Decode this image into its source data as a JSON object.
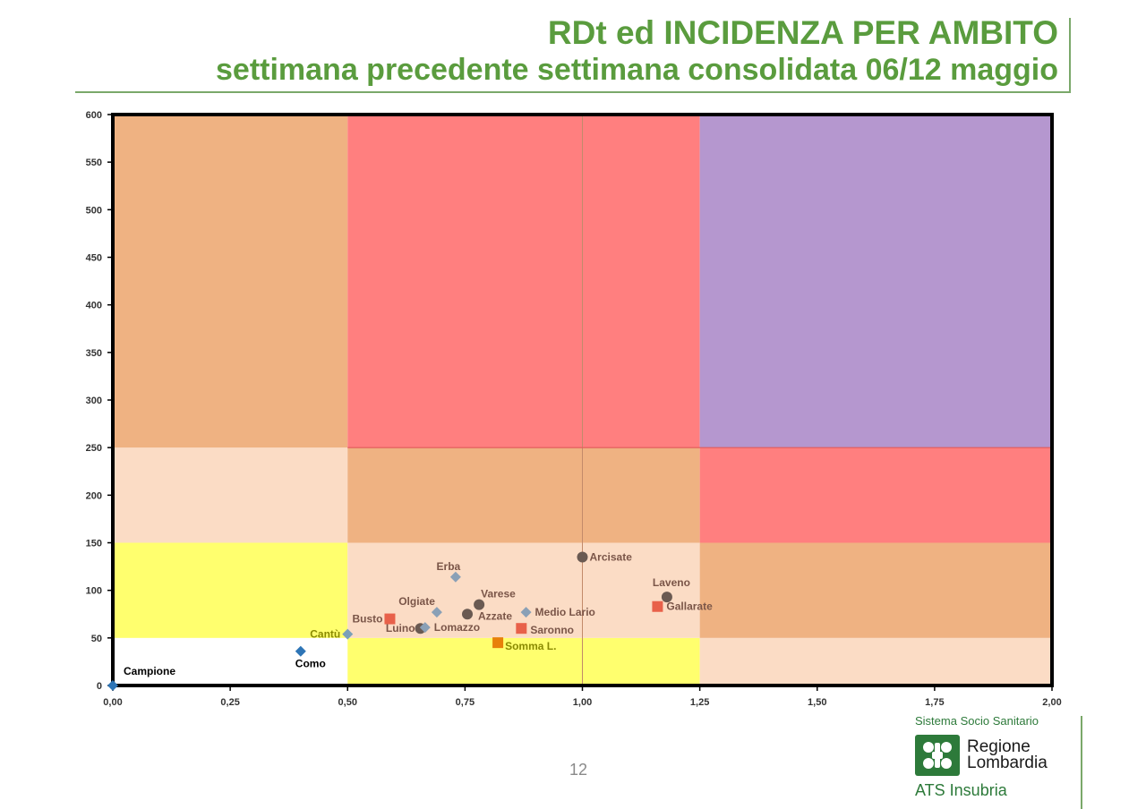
{
  "header": {
    "title": "RDt ed INCIDENZA PER AMBITO",
    "subtitle": "settimana precedente settimana consolidata 06/12 maggio"
  },
  "chart_data": {
    "type": "scatter",
    "xlim": [
      0,
      2
    ],
    "ylim": [
      0,
      600
    ],
    "x_ticks": [
      "0,00",
      "0,25",
      "0,50",
      "0,75",
      "1,00",
      "1,25",
      "1,50",
      "1,75",
      "2,00"
    ],
    "y_ticks": [
      "0",
      "50",
      "100",
      "150",
      "200",
      "250",
      "300",
      "350",
      "400",
      "450",
      "500",
      "550",
      "600"
    ],
    "grid": false,
    "zones": [
      {
        "x": [
          0,
          0.5
        ],
        "y": [
          0,
          50
        ],
        "color": "#ffffff"
      },
      {
        "x": [
          0.5,
          1.25
        ],
        "y": [
          0,
          50
        ],
        "color": "#ffff6e"
      },
      {
        "x": [
          1.25,
          2
        ],
        "y": [
          0,
          50
        ],
        "color": "#fbdcc5"
      },
      {
        "x": [
          0,
          0.5
        ],
        "y": [
          50,
          150
        ],
        "color": "#ffff6e"
      },
      {
        "x": [
          0.5,
          1.25
        ],
        "y": [
          50,
          150
        ],
        "color": "#fbdcc5"
      },
      {
        "x": [
          1.25,
          2
        ],
        "y": [
          50,
          150
        ],
        "color": "#efb282"
      },
      {
        "x": [
          0,
          0.5
        ],
        "y": [
          150,
          250
        ],
        "color": "#fbdcc5"
      },
      {
        "x": [
          0.5,
          1.25
        ],
        "y": [
          150,
          250
        ],
        "color": "#efb282"
      },
      {
        "x": [
          1.25,
          2
        ],
        "y": [
          150,
          250
        ],
        "color": "#ff7f7f"
      },
      {
        "x": [
          0,
          0.5
        ],
        "y": [
          250,
          600
        ],
        "color": "#efb282"
      },
      {
        "x": [
          0.5,
          1.25
        ],
        "y": [
          250,
          600
        ],
        "color": "#ff7f7f"
      },
      {
        "x": [
          1.25,
          2
        ],
        "y": [
          250,
          600
        ],
        "color": "#b597cf"
      }
    ],
    "points": [
      {
        "name": "Campione",
        "x": 0.0,
        "y": 0,
        "marker": "diamond",
        "color": "#2e75b6",
        "label_color": "#000000"
      },
      {
        "name": "Como",
        "x": 0.4,
        "y": 36,
        "marker": "diamond",
        "color": "#2e75b6",
        "label_color": "#000000"
      },
      {
        "name": "Cantù",
        "x": 0.5,
        "y": 54,
        "marker": "diamond",
        "color": "#7aa0b8",
        "label_color": "#8a8a00"
      },
      {
        "name": "Busto",
        "x": 0.59,
        "y": 70,
        "marker": "square",
        "color": "#e8614a",
        "label_color": "#7a5548"
      },
      {
        "name": "Olgiate",
        "x": 0.69,
        "y": 77,
        "marker": "diamond",
        "color": "#8aa0b6",
        "label_color": "#7a5548"
      },
      {
        "name": "Luino",
        "x": 0.655,
        "y": 60,
        "marker": "circle",
        "color": "#6a5a52",
        "label_color": "#7a5548"
      },
      {
        "name": "Lomazzo",
        "x": 0.665,
        "y": 61,
        "marker": "diamond",
        "color": "#8aa0b6",
        "label_color": "#7a5548"
      },
      {
        "name": "Erba",
        "x": 0.73,
        "y": 114,
        "marker": "diamond",
        "color": "#8aa0b6",
        "label_color": "#7a5548"
      },
      {
        "name": "Varese",
        "x": 0.78,
        "y": 85,
        "marker": "circle",
        "color": "#6a5a52",
        "label_color": "#7a5548"
      },
      {
        "name": "Azzate",
        "x": 0.755,
        "y": 75,
        "marker": "circle",
        "color": "#6a5a52",
        "label_color": "#7a5548"
      },
      {
        "name": "Medio Lario",
        "x": 0.88,
        "y": 77,
        "marker": "diamond",
        "color": "#8aa0b6",
        "label_color": "#7a5548"
      },
      {
        "name": "Saronno",
        "x": 0.87,
        "y": 60,
        "marker": "square",
        "color": "#e8614a",
        "label_color": "#7a5548"
      },
      {
        "name": "Somma L.",
        "x": 0.82,
        "y": 45,
        "marker": "square",
        "color": "#e8800a",
        "label_color": "#8a8a00"
      },
      {
        "name": "Arcisate",
        "x": 1.0,
        "y": 135,
        "marker": "circle",
        "color": "#6a5a52",
        "label_color": "#7a5548"
      },
      {
        "name": "Laveno",
        "x": 1.18,
        "y": 93,
        "marker": "circle",
        "color": "#6a5a52",
        "label_color": "#7a5548"
      },
      {
        "name": "Gallarate",
        "x": 1.16,
        "y": 83,
        "marker": "square",
        "color": "#e8614a",
        "label_color": "#7a5548"
      }
    ]
  },
  "footer": {
    "page_number": "12",
    "brand_system": "Sistema Socio Sanitario",
    "brand_region_line1": "Regione",
    "brand_region_line2": "Lombardia",
    "brand_ats": "ATS Insubria"
  }
}
